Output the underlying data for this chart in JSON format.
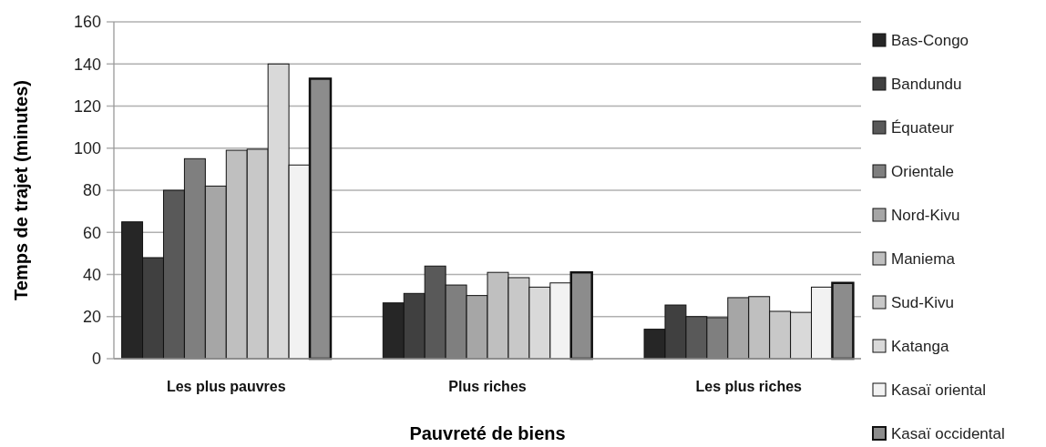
{
  "chart_data": {
    "type": "bar",
    "xlabel": "Pauvreté de biens",
    "ylabel": "Temps de trajet (minutes)",
    "categories": [
      "Les plus pauvres",
      "Plus riches",
      "Les plus riches"
    ],
    "series": [
      {
        "name": "Bas-Congo",
        "color": "#262626",
        "values": [
          65,
          26.5,
          14
        ]
      },
      {
        "name": "Bandundu",
        "color": "#404040",
        "values": [
          48,
          31,
          25.5
        ]
      },
      {
        "name": "Équateur",
        "color": "#595959",
        "values": [
          80,
          44,
          20
        ]
      },
      {
        "name": "Orientale",
        "color": "#7f7f7f",
        "values": [
          95,
          35,
          19.5
        ]
      },
      {
        "name": "Nord-Kivu",
        "color": "#a6a6a6",
        "values": [
          82,
          30,
          29
        ]
      },
      {
        "name": "Maniema",
        "color": "#bfbfbf",
        "values": [
          99,
          41,
          29.5
        ]
      },
      {
        "name": "Sud-Kivu",
        "color": "#c8c8c8",
        "values": [
          99.5,
          38.5,
          22.5
        ]
      },
      {
        "name": "Katanga",
        "color": "#d9d9d9",
        "values": [
          140,
          34,
          22
        ]
      },
      {
        "name": "Kasaï oriental",
        "color": "#f2f2f2",
        "values": [
          92,
          36,
          34
        ]
      },
      {
        "name": "Kasaï occidental",
        "color": "#8c8c8c",
        "values": [
          133,
          41,
          36
        ]
      }
    ],
    "ylim": [
      0,
      160
    ],
    "yticks": [
      0,
      20,
      40,
      60,
      80,
      100,
      120,
      140,
      160
    ],
    "grid": "y",
    "legend": "right"
  }
}
